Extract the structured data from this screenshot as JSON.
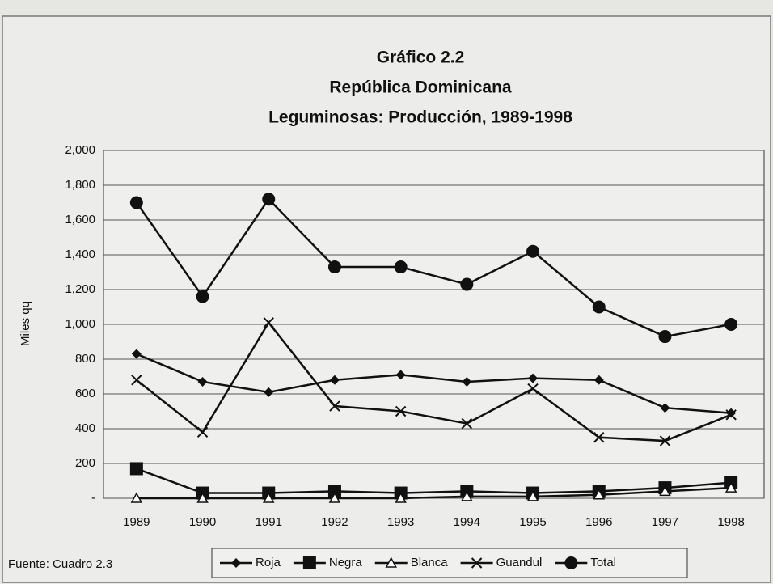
{
  "chart_data": {
    "type": "line",
    "title": [
      "Gráfico 2.2",
      "República Dominicana",
      "Leguminosas: Producción, 1989-1998"
    ],
    "ylabel": "Miles qq",
    "source": "Fuente: Cuadro 2.3",
    "categories": [
      "1989",
      "1990",
      "1991",
      "1992",
      "1993",
      "1994",
      "1995",
      "1996",
      "1997",
      "1998"
    ],
    "series": [
      {
        "name": "Roja",
        "color": "#111111",
        "marker": "diamond",
        "values": [
          830,
          670,
          610,
          680,
          710,
          670,
          690,
          680,
          520,
          490
        ]
      },
      {
        "name": "Negra",
        "color": "#111111",
        "marker": "square",
        "values": [
          170,
          30,
          30,
          40,
          30,
          40,
          30,
          40,
          60,
          90
        ]
      },
      {
        "name": "Blanca",
        "color": "#111111",
        "marker": "triangle",
        "values": [
          0,
          0,
          0,
          0,
          0,
          10,
          10,
          20,
          40,
          60
        ]
      },
      {
        "name": "Guandul",
        "color": "#111111",
        "marker": "x",
        "values": [
          680,
          380,
          1010,
          530,
          500,
          430,
          630,
          350,
          330,
          480
        ]
      },
      {
        "name": "Total",
        "color": "#111111",
        "marker": "circle",
        "values": [
          1700,
          1160,
          1720,
          1330,
          1330,
          1230,
          1420,
          1100,
          930,
          1000
        ]
      }
    ],
    "ylim": [
      0,
      2000
    ],
    "yticks": [
      {
        "value": 0,
        "label": "-"
      },
      200,
      400,
      600,
      800,
      {
        "value": 1000,
        "label": "1,000"
      },
      {
        "value": 1200,
        "label": "1,200"
      },
      {
        "value": 1400,
        "label": "1,400"
      },
      {
        "value": 1600,
        "label": "1,600"
      },
      {
        "value": 1800,
        "label": "1,800"
      },
      {
        "value": 2000,
        "label": "2,000"
      }
    ],
    "grid": true
  }
}
